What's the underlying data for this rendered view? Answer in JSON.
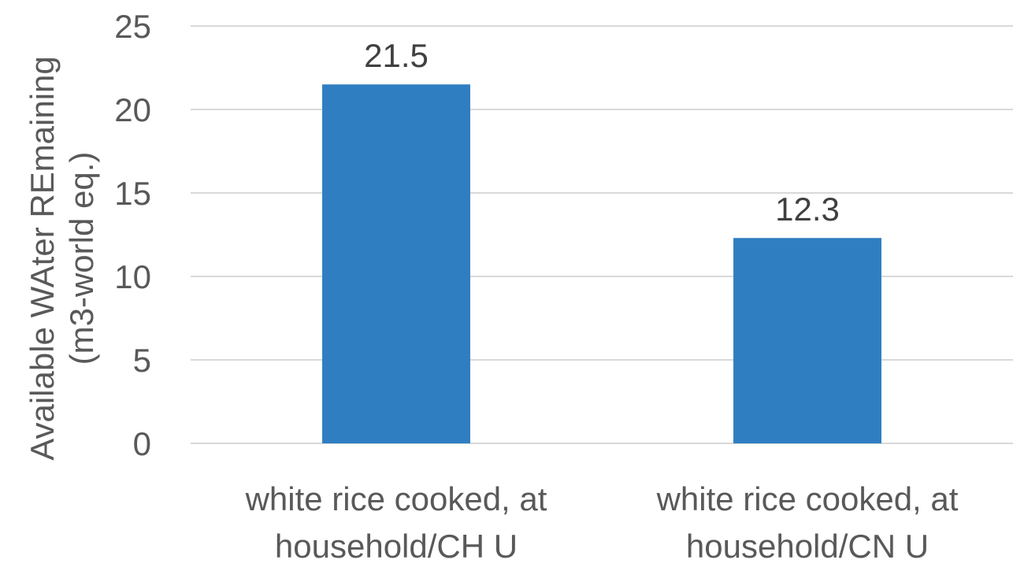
{
  "chart_data": {
    "type": "bar",
    "title": "",
    "xlabel": "",
    "ylabel": [
      "Available WAter REmaining",
      "(m3-world eq.)"
    ],
    "categories": [
      [
        "white rice cooked, at",
        "household/CH U"
      ],
      [
        "white rice cooked, at",
        "household/CN U"
      ]
    ],
    "values": [
      21.5,
      12.3
    ],
    "data_labels": [
      "21.5",
      "12.3"
    ],
    "ylim": [
      0,
      25
    ],
    "yticks": [
      0,
      5,
      10,
      15,
      20,
      25
    ],
    "grid": true,
    "legend": "none",
    "bar_color": "#2f7ec1"
  }
}
